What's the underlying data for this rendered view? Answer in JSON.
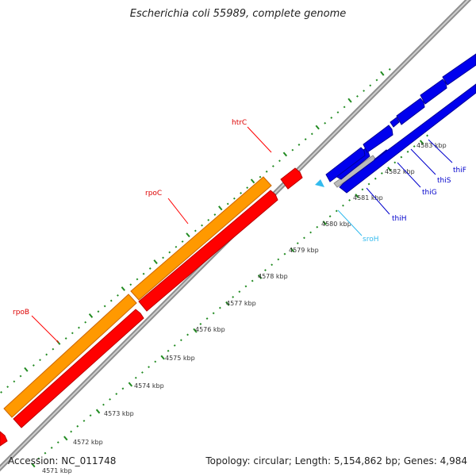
{
  "title": "Escherichia coli 55989, complete genome",
  "footer": {
    "accession": "Accession: NC_011748",
    "summary": "Topology: circular; Length: 5,154,862 bp; Genes: 4,984"
  },
  "scale": {
    "unit": "kbp",
    "tick_labels": [
      "4571 kbp",
      "4572 kbp",
      "4573 kbp",
      "4574 kbp",
      "4575 kbp",
      "4576 kbp",
      "4577 kbp",
      "4578 kbp",
      "4579 kbp",
      "4580 kbp",
      "4581 kbp",
      "4582 kbp",
      "4583 kbp"
    ]
  },
  "genes": [
    {
      "name": "rpoB",
      "strand": "forward",
      "color": "#ff0000"
    },
    {
      "name": "rpoC",
      "strand": "forward",
      "color": "#ff0000"
    },
    {
      "name": "htrC",
      "strand": "forward",
      "color": "#ff0000"
    },
    {
      "name": "sroH",
      "strand": "reverse",
      "color": "#33bbee"
    },
    {
      "name": "thiH",
      "strand": "reverse",
      "color": "#0000dd"
    },
    {
      "name": "thiG",
      "strand": "reverse",
      "color": "#0000dd"
    },
    {
      "name": "thiS",
      "strand": "reverse",
      "color": "#0000dd"
    },
    {
      "name": "thiF",
      "strand": "reverse",
      "color": "#0000dd"
    }
  ],
  "colors": {
    "cds_forward": "#ff0000",
    "operon_forward": "#ff9900",
    "cds_reverse": "#0000ee",
    "rna": "#33bbee",
    "pseudo": "#bbbbbb",
    "backbone": "#9a9a9a",
    "ticks": "#228b22"
  }
}
